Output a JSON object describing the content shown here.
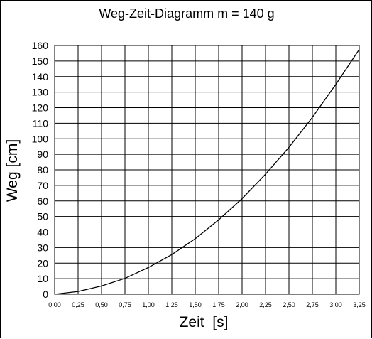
{
  "chart_data": {
    "type": "line",
    "title": "Weg-Zeit-Diagramm m = 140 g",
    "xlabel": "Zeit  [s]",
    "ylabel": "Weg [cm]",
    "xlim": [
      0,
      3.25
    ],
    "ylim": [
      0,
      160
    ],
    "x_ticks": [
      "0,00",
      "0,25",
      "0,50",
      "0,75",
      "1,00",
      "1,25",
      "1,50",
      "1,75",
      "2,00",
      "2,25",
      "2,50",
      "2,75",
      "3,00",
      "3,25"
    ],
    "y_ticks": [
      "0",
      "10",
      "20",
      "30",
      "40",
      "50",
      "60",
      "70",
      "80",
      "90",
      "100",
      "110",
      "120",
      "130",
      "140",
      "150",
      "160"
    ],
    "grid": true,
    "series": [
      {
        "color": "#000000",
        "points": [
          [
            0,
            0
          ],
          [
            0.25,
            1.8
          ],
          [
            0.5,
            5.3
          ],
          [
            0.75,
            10.2
          ],
          [
            1.0,
            17.2
          ],
          [
            1.25,
            25.5
          ],
          [
            1.5,
            35.7
          ],
          [
            1.75,
            47.8
          ],
          [
            2.0,
            61.5
          ],
          [
            2.25,
            77.2
          ],
          [
            2.5,
            94.5
          ],
          [
            2.75,
            113.8
          ],
          [
            3.0,
            135.0
          ],
          [
            3.25,
            157.5
          ]
        ]
      }
    ]
  }
}
